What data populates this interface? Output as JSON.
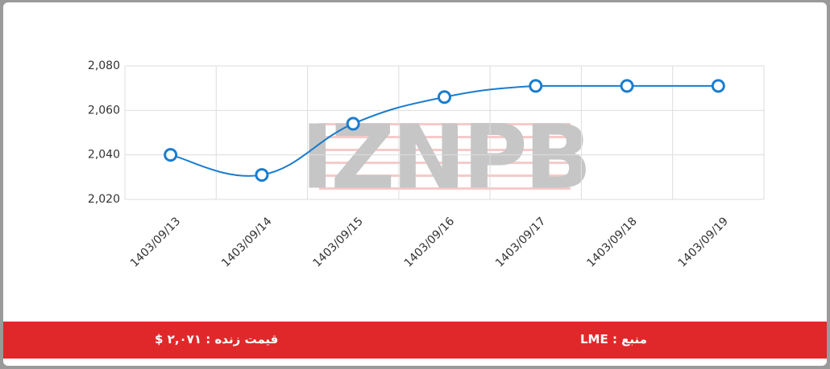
{
  "chart_data": {
    "type": "line",
    "watermark": "IZNPB",
    "categories": [
      "1403/09/13",
      "1403/09/14",
      "1403/09/15",
      "1403/09/16",
      "1403/09/17",
      "1403/09/18",
      "1403/09/19"
    ],
    "series": [
      {
        "name": "LME",
        "color": "#1a7ccf",
        "values": [
          2040,
          2031,
          2054,
          2066,
          2071,
          2071,
          2071
        ]
      }
    ],
    "ylim": [
      2020,
      2080
    ],
    "yticks": [
      {
        "value": 2020,
        "label": "2,020"
      },
      {
        "value": 2040,
        "label": "2,040"
      },
      {
        "value": 2060,
        "label": "2,060"
      },
      {
        "value": 2080,
        "label": "2,080"
      }
    ],
    "grid": true
  },
  "footer": {
    "source": "منبع : LME",
    "live_price": "قیمت زنده : ۲,۰۷۱ $"
  }
}
